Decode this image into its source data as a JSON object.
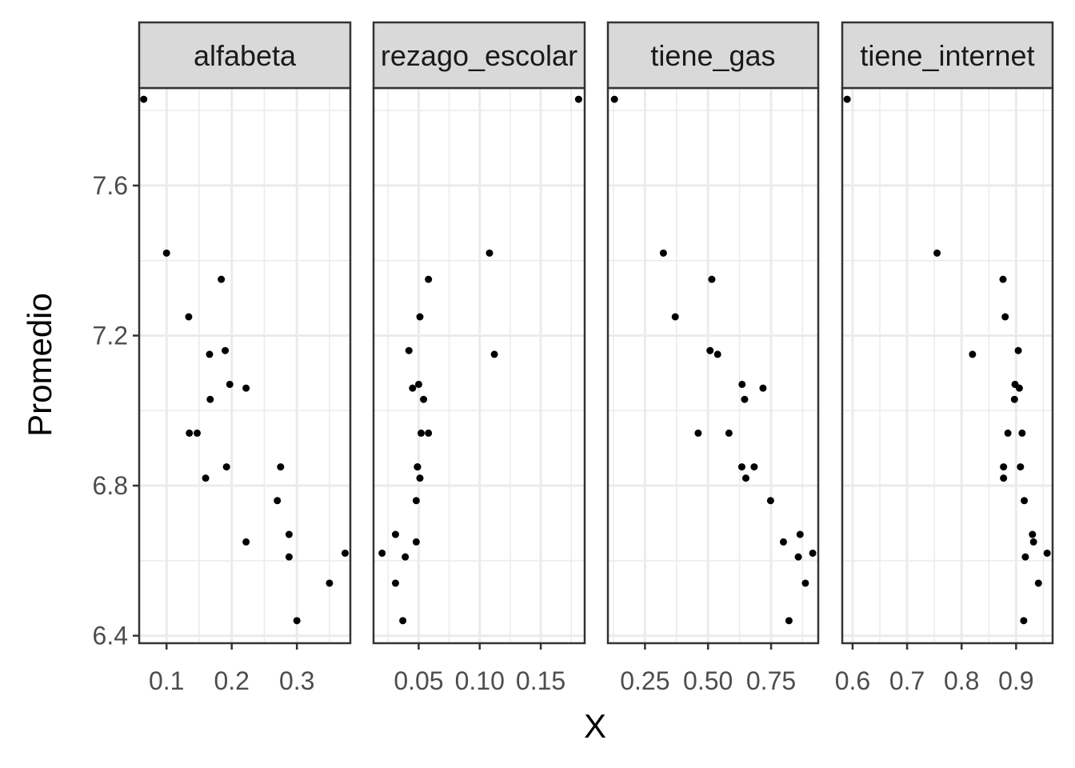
{
  "chart_data": {
    "type": "scatter",
    "layout": "facet_wrap",
    "xlabel": "X",
    "ylabel": "Promedio",
    "ylim": [
      6.38,
      7.86
    ],
    "yticks": [
      6.4,
      6.8,
      7.2,
      7.6
    ],
    "ytick_labels": [
      "6.4",
      "6.8",
      "7.2",
      "7.6"
    ],
    "y_minor_ticks": [
      6.6,
      7.0,
      7.4,
      7.8
    ],
    "y": [
      7.83,
      7.42,
      7.35,
      7.25,
      7.16,
      7.15,
      7.07,
      7.06,
      7.03,
      6.94,
      6.94,
      6.85,
      6.85,
      6.82,
      6.76,
      6.67,
      6.65,
      6.62,
      6.61,
      6.54,
      6.44
    ],
    "colors": {
      "points": "#000000",
      "strip_bg": "#d9d9d9",
      "grid": "#ebebeb",
      "panel_border": "#333333"
    },
    "panels": [
      {
        "title": "alfabeta",
        "xlim": [
          0.058,
          0.382
        ],
        "xticks": [
          0.1,
          0.2,
          0.3
        ],
        "xtick_labels": [
          "0.1",
          "0.2",
          "0.3"
        ],
        "x_minor_ticks": [
          0.15,
          0.25,
          0.35
        ],
        "x": [
          0.065,
          0.1,
          0.184,
          0.134,
          0.19,
          0.166,
          0.197,
          0.222,
          0.167,
          0.147,
          0.135,
          0.192,
          0.275,
          0.16,
          0.27,
          0.288,
          0.222,
          0.374,
          0.288,
          0.35,
          0.3
        ]
      },
      {
        "title": "rezago_escolar",
        "xlim": [
          0.013,
          0.186
        ],
        "xticks": [
          0.05,
          0.1,
          0.15
        ],
        "xtick_labels": [
          "0.05",
          "0.10",
          "0.15"
        ],
        "x_minor_ticks": [
          0.025,
          0.075,
          0.125,
          0.175
        ],
        "x": [
          0.181,
          0.108,
          0.058,
          0.051,
          0.042,
          0.112,
          0.05,
          0.045,
          0.054,
          0.052,
          0.058,
          0.049,
          0.049,
          0.051,
          0.048,
          0.031,
          0.048,
          0.02,
          0.039,
          0.031,
          0.037
        ]
      },
      {
        "title": "tiene_gas",
        "xlim": [
          0.103,
          0.937
        ],
        "xticks": [
          0.25,
          0.5,
          0.75
        ],
        "xtick_labels": [
          "0.25",
          "0.50",
          "0.75"
        ],
        "x_minor_ticks": [
          0.125,
          0.375,
          0.625,
          0.875
        ],
        "x": [
          0.129,
          0.323,
          0.515,
          0.37,
          0.508,
          0.538,
          0.635,
          0.718,
          0.645,
          0.583,
          0.461,
          0.634,
          0.683,
          0.65,
          0.748,
          0.865,
          0.799,
          0.915,
          0.858,
          0.886,
          0.821
        ]
      },
      {
        "title": "tiene_internet",
        "xlim": [
          0.581,
          0.967
        ],
        "xticks": [
          0.6,
          0.7,
          0.8,
          0.9
        ],
        "xtick_labels": [
          "0.6",
          "0.7",
          "0.8",
          "0.9"
        ],
        "x_minor_ticks": [
          0.65,
          0.75,
          0.85,
          0.95
        ],
        "x": [
          0.59,
          0.755,
          0.876,
          0.88,
          0.904,
          0.82,
          0.898,
          0.906,
          0.897,
          0.911,
          0.885,
          0.908,
          0.877,
          0.877,
          0.915,
          0.93,
          0.932,
          0.957,
          0.917,
          0.941,
          0.914
        ]
      }
    ]
  }
}
